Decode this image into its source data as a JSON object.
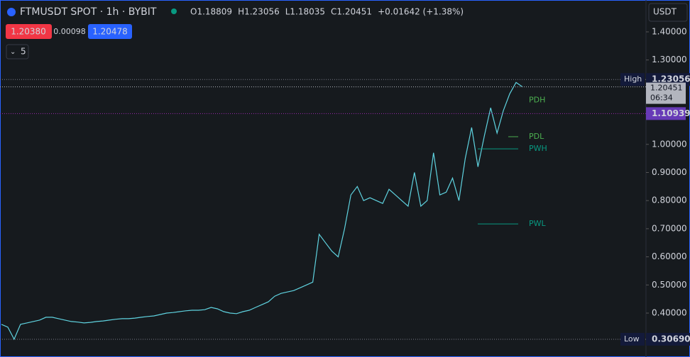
{
  "chart_data": {
    "type": "line",
    "title": "FTMUSDT SPOT · 1h · BYBIT",
    "color": "#5fd3e0",
    "ohlc": [
      "O1.18809",
      "H1.23056",
      "L1.18035",
      "C1.20451",
      "+0.01642 (+1.38%)"
    ],
    "bid": "1.20380",
    "spread": "0.00098",
    "ask": "1.20478",
    "indicators": "5",
    "currency": "USDT",
    "ylim": [
      0.2438,
      1.5133
    ],
    "yticks": [
      {
        "value": 1.4,
        "label": "1.40000"
      },
      {
        "value": 1.3,
        "label": "1.30000"
      },
      {
        "value": 1.0,
        "label": "1.00000"
      },
      {
        "value": 0.9,
        "label": "0.90000"
      },
      {
        "value": 0.8,
        "label": "0.80000"
      },
      {
        "value": 0.7,
        "label": "0.70000"
      },
      {
        "value": 0.6,
        "label": "0.60000"
      },
      {
        "value": 0.5,
        "label": "0.50000"
      },
      {
        "value": 0.4,
        "label": "0.40000"
      }
    ],
    "values": [
      0.36,
      0.35,
      0.307,
      0.36,
      0.365,
      0.37,
      0.375,
      0.385,
      0.385,
      0.38,
      0.375,
      0.37,
      0.368,
      0.365,
      0.367,
      0.37,
      0.372,
      0.375,
      0.378,
      0.38,
      0.38,
      0.382,
      0.385,
      0.388,
      0.39,
      0.395,
      0.4,
      0.402,
      0.405,
      0.408,
      0.41,
      0.41,
      0.412,
      0.42,
      0.415,
      0.405,
      0.4,
      0.398,
      0.405,
      0.41,
      0.42,
      0.43,
      0.44,
      0.46,
      0.47,
      0.475,
      0.48,
      0.49,
      0.5,
      0.51,
      0.68,
      0.65,
      0.62,
      0.6,
      0.7,
      0.82,
      0.85,
      0.8,
      0.81,
      0.8,
      0.79,
      0.84,
      0.82,
      0.8,
      0.78,
      0.9,
      0.78,
      0.8,
      0.97,
      0.82,
      0.83,
      0.88,
      0.8,
      0.95,
      1.06,
      0.92,
      1.03,
      1.13,
      1.04,
      1.12,
      1.18,
      1.22,
      1.20451
    ],
    "high": {
      "label": "High",
      "value": 1.23056,
      "value_label": "1.23056"
    },
    "low": {
      "label": "Low",
      "value": 0.3069,
      "value_label": "0.30690"
    },
    "last": {
      "value_label": "1.20451",
      "countdown": "06:34"
    },
    "levels": [
      {
        "name": "PDH",
        "value": 1.10939,
        "color": "#4caf50"
      },
      {
        "name": "PDL",
        "value": 1.0272,
        "color": "#4caf50"
      },
      {
        "name": "PWH",
        "value": 0.984,
        "color": "#089981"
      },
      {
        "name": "PWL",
        "value": 0.717,
        "color": "#089981"
      }
    ]
  }
}
